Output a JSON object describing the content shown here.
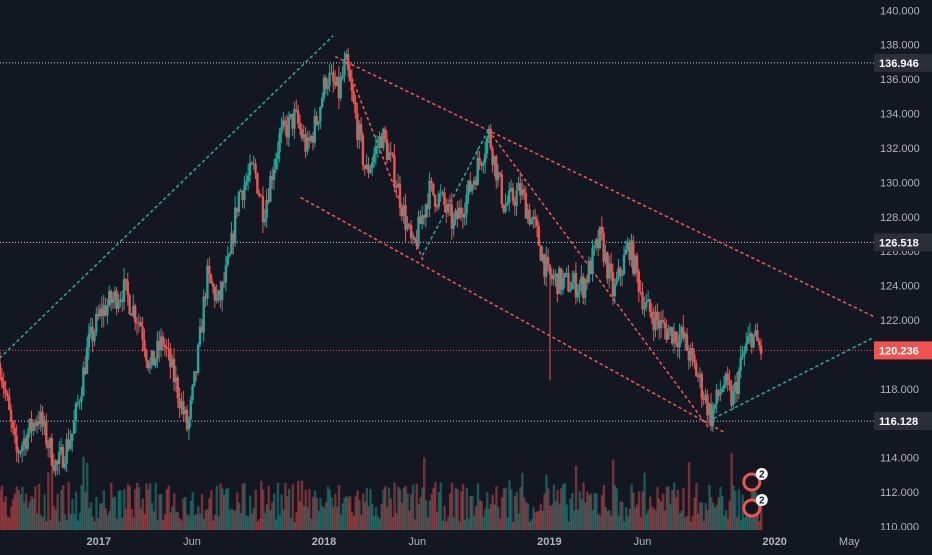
{
  "chart_data": {
    "type": "candlestick",
    "ylim": [
      109.8,
      140.6
    ],
    "y_ticks": [
      "110.000",
      "112.000",
      "114.000",
      "116.000",
      "118.000",
      "120.000",
      "122.000",
      "124.000",
      "126.000",
      "128.000",
      "130.000",
      "132.000",
      "134.000",
      "136.000",
      "138.000",
      "140.000"
    ],
    "x_ticks": [
      "2017",
      "Jun",
      "2018",
      "Jun",
      "2019",
      "Jun",
      "2020",
      "May"
    ],
    "x_range": [
      "2016-07-25",
      "2020-06-10"
    ],
    "horizontal_levels": [
      {
        "label": "136.946",
        "value": 136.946,
        "style": "dotted",
        "color": "#c7cad3"
      },
      {
        "label": "126.518",
        "value": 126.518,
        "style": "dotted",
        "color": "#c7cad3"
      },
      {
        "label": "116.128",
        "value": 116.128,
        "style": "dotted",
        "color": "#c7cad3"
      },
      {
        "label": "120.236",
        "value": 120.236,
        "style": "dotted",
        "color": "#ef5350",
        "current_price": true
      }
    ],
    "trendlines": [
      {
        "name": "rising support 2016-2018",
        "color": "#26a69a",
        "style": "dotted",
        "points": [
          [
            "2016-07-25",
            119.8
          ],
          [
            "2018-01-15",
            138.5
          ]
        ]
      },
      {
        "name": "falling channel upper",
        "color": "#ef5350",
        "style": "dotted",
        "points": [
          [
            "2018-01-20",
            137.3
          ],
          [
            "2020-06-10",
            122.2
          ]
        ]
      },
      {
        "name": "falling channel lower",
        "color": "#ef5350",
        "style": "dotted",
        "points": [
          [
            "2017-11-25",
            129.1
          ],
          [
            "2019-10-10",
            115.5
          ]
        ]
      },
      {
        "name": "steep decline",
        "color": "#ef5350",
        "style": "dotted",
        "points": [
          [
            "2018-02-05",
            137.0
          ],
          [
            "2018-06-10",
            125.5
          ]
        ]
      },
      {
        "name": "decline from 2018 high to 2019 low",
        "color": "#ef5350",
        "style": "dotted",
        "points": [
          [
            "2018-09-25",
            133.0
          ],
          [
            "2019-09-15",
            115.8
          ]
        ]
      },
      {
        "name": "rebound line 2018",
        "color": "#26a69a",
        "style": "dotted",
        "points": [
          [
            "2018-06-10",
            125.8
          ],
          [
            "2018-09-25",
            133.1
          ]
        ]
      },
      {
        "name": "rising support 2019",
        "color": "#26a69a",
        "style": "dotted",
        "points": [
          [
            "2019-09-25",
            116.3
          ],
          [
            "2020-06-10",
            121.0
          ]
        ]
      }
    ],
    "price_anchors": [
      [
        "2016-07-25",
        119.5
      ],
      [
        "2016-08-20",
        114.2
      ],
      [
        "2016-09-25",
        116.5
      ],
      [
        "2016-10-25",
        113.4
      ],
      [
        "2016-11-20",
        115.5
      ],
      [
        "2016-12-15",
        120.5
      ],
      [
        "2017-01-05",
        122.5
      ],
      [
        "2017-02-10",
        123.8
      ],
      [
        "2017-03-10",
        121.8
      ],
      [
        "2017-03-25",
        119.2
      ],
      [
        "2017-04-15",
        120.8
      ],
      [
        "2017-05-10",
        117.8
      ],
      [
        "2017-05-25",
        115.6
      ],
      [
        "2017-06-10",
        119.6
      ],
      [
        "2017-06-25",
        124.5
      ],
      [
        "2017-07-15",
        123.0
      ],
      [
        "2017-08-01",
        125.5
      ],
      [
        "2017-08-15",
        129.3
      ],
      [
        "2017-09-10",
        130.8
      ],
      [
        "2017-09-25",
        128.3
      ],
      [
        "2017-10-20",
        132.5
      ],
      [
        "2017-11-15",
        133.8
      ],
      [
        "2017-12-05",
        131.9
      ],
      [
        "2017-12-20",
        133.6
      ],
      [
        "2018-01-05",
        136.2
      ],
      [
        "2018-01-25",
        135.2
      ],
      [
        "2018-02-05",
        136.946
      ],
      [
        "2018-02-20",
        134.0
      ],
      [
        "2018-03-10",
        130.5
      ],
      [
        "2018-04-05",
        132.8
      ],
      [
        "2018-04-25",
        130.5
      ],
      [
        "2018-05-25",
        126.0
      ],
      [
        "2018-06-20",
        129.5
      ],
      [
        "2018-07-10",
        129.0
      ],
      [
        "2018-07-30",
        127.5
      ],
      [
        "2018-08-25",
        129.6
      ],
      [
        "2018-09-25",
        132.8
      ],
      [
        "2018-10-20",
        128.6
      ],
      [
        "2018-11-15",
        129.5
      ],
      [
        "2018-12-10",
        127.2
      ],
      [
        "2018-12-30",
        124.5
      ],
      [
        "2019-01-20",
        124.2
      ],
      [
        "2019-02-25",
        124.0
      ],
      [
        "2019-03-25",
        126.8
      ],
      [
        "2019-04-15",
        123.5
      ],
      [
        "2019-05-10",
        126.4
      ],
      [
        "2019-06-05",
        122.8
      ],
      [
        "2019-07-05",
        121.5
      ],
      [
        "2019-08-05",
        121.0
      ],
      [
        "2019-09-01",
        118.5
      ],
      [
        "2019-09-20",
        116.4
      ],
      [
        "2019-10-10",
        118.4
      ],
      [
        "2019-10-25",
        117.3
      ],
      [
        "2019-11-10",
        119.8
      ],
      [
        "2019-11-25",
        121.2
      ],
      [
        "2019-12-10",
        120.236
      ]
    ],
    "volume": {
      "color_up": "#26a69a",
      "color_down": "#ef5350",
      "max_height_ratio": 0.14
    }
  },
  "badges": [
    {
      "label": "2",
      "icon": "event-icon"
    },
    {
      "label": "2",
      "icon": "dividend-icon"
    }
  ],
  "colors": {
    "background": "#131722",
    "axis_text": "#b2b5be",
    "up": "#26a69a",
    "down": "#ef5350",
    "label_bg": "#2a2e39"
  }
}
